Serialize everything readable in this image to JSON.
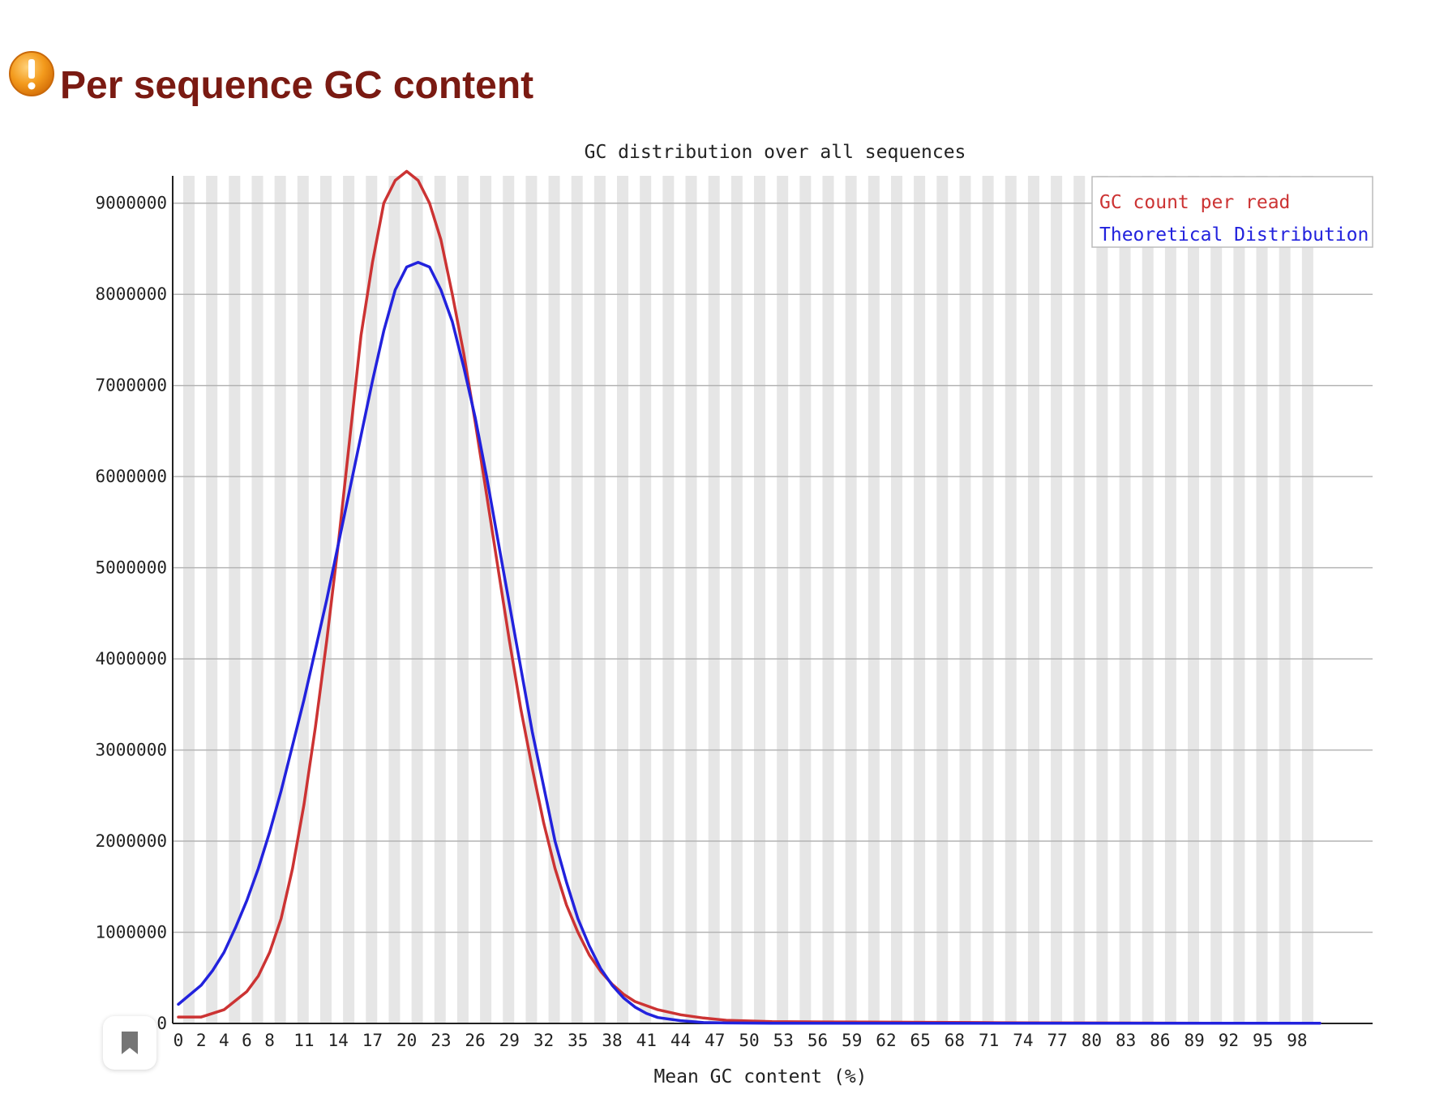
{
  "page": {
    "title": "Per sequence GC content",
    "status_icon": "warning-icon"
  },
  "colors": {
    "title": "#7a1a12",
    "gc_count_series": "#cc3333",
    "theoretical_series": "#2222dd",
    "stripe": "#e6e6e6",
    "gridline": "#b4b4b4"
  },
  "chart_data": {
    "type": "line",
    "title": "GC distribution over all sequences",
    "xlabel": "Mean GC content (%)",
    "ylabel": "",
    "xlim": [
      0,
      100
    ],
    "ylim": [
      0,
      9300000
    ],
    "x_tick_labels": [
      "0",
      "2",
      "4",
      "6",
      "8",
      "11",
      "14",
      "17",
      "20",
      "23",
      "26",
      "29",
      "32",
      "35",
      "38",
      "41",
      "44",
      "47",
      "50",
      "53",
      "56",
      "59",
      "62",
      "65",
      "68",
      "71",
      "74",
      "77",
      "80",
      "83",
      "86",
      "89",
      "92",
      "95",
      "98"
    ],
    "y_ticks": [
      0,
      1000000,
      2000000,
      3000000,
      4000000,
      5000000,
      6000000,
      7000000,
      8000000,
      9000000
    ],
    "grid": true,
    "legend_position": "top-right",
    "series": [
      {
        "name": "GC count per read",
        "color": "#cc3333",
        "points": [
          [
            0,
            70000
          ],
          [
            2,
            70000
          ],
          [
            4,
            150000
          ],
          [
            6,
            350000
          ],
          [
            7,
            520000
          ],
          [
            8,
            780000
          ],
          [
            9,
            1150000
          ],
          [
            10,
            1700000
          ],
          [
            11,
            2400000
          ],
          [
            12,
            3250000
          ],
          [
            13,
            4200000
          ],
          [
            14,
            5250000
          ],
          [
            15,
            6400000
          ],
          [
            16,
            7550000
          ],
          [
            17,
            8350000
          ],
          [
            18,
            9000000
          ],
          [
            19,
            9250000
          ],
          [
            20,
            9350000
          ],
          [
            21,
            9250000
          ],
          [
            22,
            9000000
          ],
          [
            23,
            8600000
          ],
          [
            24,
            8000000
          ],
          [
            25,
            7350000
          ],
          [
            26,
            6600000
          ],
          [
            27,
            5800000
          ],
          [
            28,
            5000000
          ],
          [
            29,
            4200000
          ],
          [
            30,
            3450000
          ],
          [
            31,
            2800000
          ],
          [
            32,
            2200000
          ],
          [
            33,
            1700000
          ],
          [
            34,
            1300000
          ],
          [
            35,
            1000000
          ],
          [
            36,
            750000
          ],
          [
            37,
            570000
          ],
          [
            38,
            430000
          ],
          [
            39,
            320000
          ],
          [
            40,
            240000
          ],
          [
            42,
            150000
          ],
          [
            44,
            95000
          ],
          [
            46,
            60000
          ],
          [
            48,
            35000
          ],
          [
            52,
            20000
          ],
          [
            60,
            15000
          ],
          [
            70,
            10000
          ],
          [
            72,
            8000
          ],
          [
            80,
            5000
          ],
          [
            90,
            3000
          ],
          [
            100,
            2000
          ]
        ]
      },
      {
        "name": "Theoretical Distribution",
        "color": "#2222dd",
        "points": [
          [
            0,
            210000
          ],
          [
            2,
            420000
          ],
          [
            3,
            580000
          ],
          [
            4,
            780000
          ],
          [
            5,
            1050000
          ],
          [
            6,
            1350000
          ],
          [
            7,
            1700000
          ],
          [
            8,
            2100000
          ],
          [
            9,
            2550000
          ],
          [
            10,
            3050000
          ],
          [
            11,
            3550000
          ],
          [
            12,
            4100000
          ],
          [
            13,
            4650000
          ],
          [
            14,
            5250000
          ],
          [
            15,
            5850000
          ],
          [
            16,
            6450000
          ],
          [
            17,
            7050000
          ],
          [
            18,
            7600000
          ],
          [
            19,
            8050000
          ],
          [
            20,
            8300000
          ],
          [
            21,
            8350000
          ],
          [
            22,
            8300000
          ],
          [
            23,
            8050000
          ],
          [
            24,
            7700000
          ],
          [
            25,
            7200000
          ],
          [
            26,
            6650000
          ],
          [
            27,
            6000000
          ],
          [
            28,
            5300000
          ],
          [
            29,
            4600000
          ],
          [
            30,
            3900000
          ],
          [
            31,
            3200000
          ],
          [
            32,
            2600000
          ],
          [
            33,
            2000000
          ],
          [
            34,
            1550000
          ],
          [
            35,
            1150000
          ],
          [
            36,
            850000
          ],
          [
            37,
            600000
          ],
          [
            38,
            420000
          ],
          [
            39,
            280000
          ],
          [
            40,
            180000
          ],
          [
            41,
            110000
          ],
          [
            42,
            65000
          ],
          [
            44,
            30000
          ],
          [
            46,
            10000
          ],
          [
            48,
            5000
          ],
          [
            52,
            3000
          ],
          [
            60,
            2000
          ],
          [
            70,
            2000
          ],
          [
            80,
            2000
          ],
          [
            90,
            2000
          ],
          [
            100,
            2000
          ]
        ]
      }
    ]
  }
}
